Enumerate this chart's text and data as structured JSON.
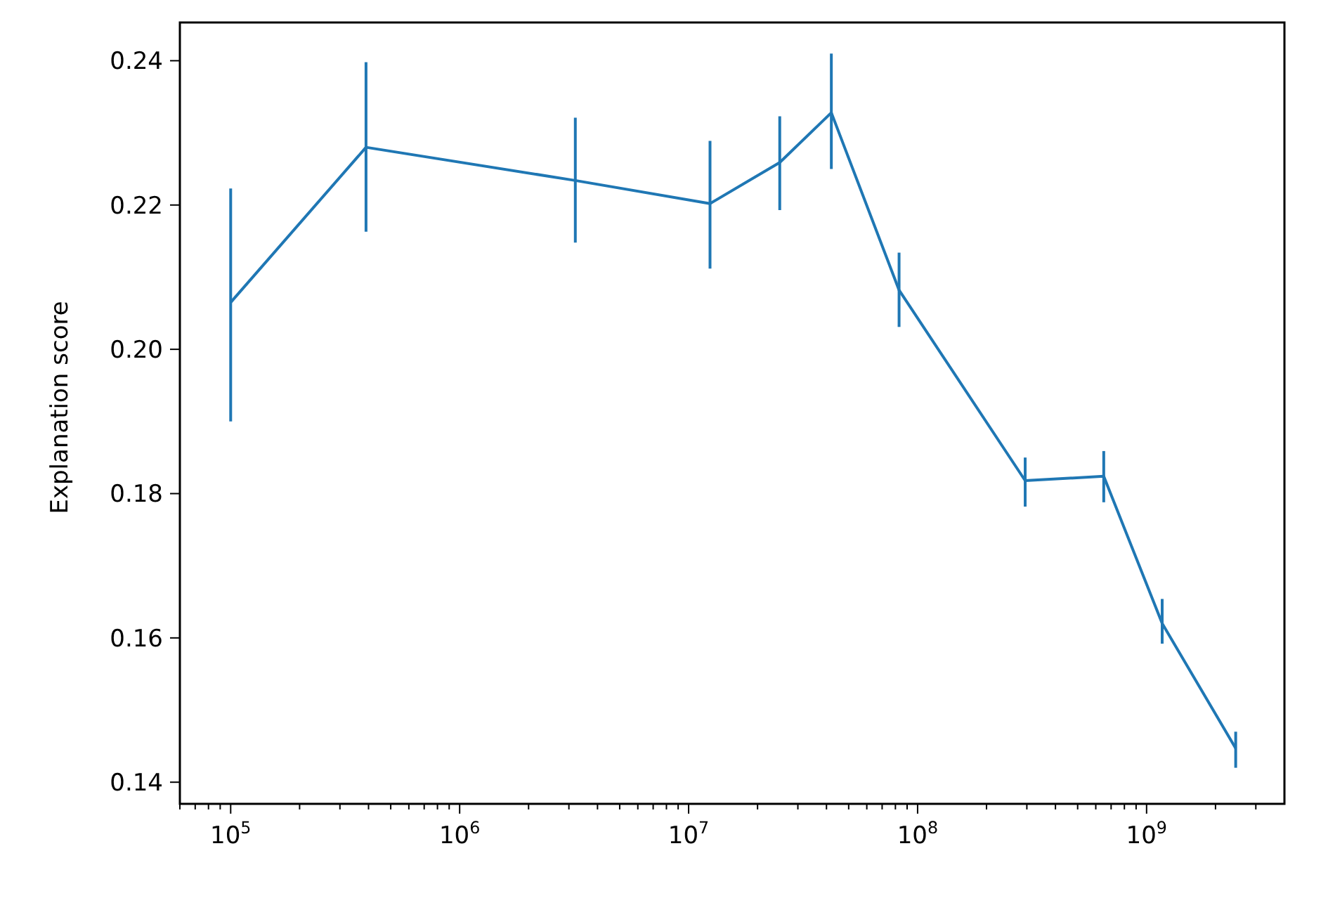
{
  "chart_data": {
    "type": "line",
    "ylabel": "Explanation score",
    "log": "x",
    "x": [
      100000,
      390000,
      3200000,
      12400000,
      25000000,
      42000000,
      83000000,
      295000000,
      650000000,
      1170000000,
      2450000000
    ],
    "series": [
      {
        "color": "#1f77b4",
        "values": [
          0.2065,
          0.228,
          0.2234,
          0.2202,
          0.2259,
          0.2328,
          0.2082,
          0.1818,
          0.1824,
          0.162,
          0.1447
        ],
        "errors": [
          [
            0.19,
            0.2223
          ],
          [
            0.2163,
            0.2398
          ],
          [
            0.2148,
            0.2321
          ],
          [
            0.2112,
            0.2289
          ],
          [
            0.2193,
            0.2323
          ],
          [
            0.225,
            0.241
          ],
          [
            0.2031,
            0.2134
          ],
          [
            0.1782,
            0.185
          ],
          [
            0.1788,
            0.1859
          ],
          [
            0.1592,
            0.1654
          ],
          [
            0.142,
            0.147
          ]
        ]
      }
    ],
    "xlim": [
      60000,
      4000000000
    ],
    "ylim": [
      0.137,
      0.2453
    ],
    "xticks": [
      {
        "value": 100000,
        "label": "10$^{5}$"
      },
      {
        "value": 1000000,
        "label": "10$^{6}$"
      },
      {
        "value": 10000000,
        "label": "10$^{7}$"
      },
      {
        "value": 100000000,
        "label": "10$^{8}$"
      },
      {
        "value": 1000000000,
        "label": "10$^{9}$"
      },
      {
        "value": 60000,
        "label": null
      },
      {
        "value": 70000,
        "label": null
      },
      {
        "value": 80000,
        "label": null
      },
      {
        "value": 90000,
        "label": null
      },
      {
        "value": 200000,
        "label": null
      },
      {
        "value": 300000,
        "label": null
      },
      {
        "value": 400000,
        "label": null
      },
      {
        "value": 500000,
        "label": null
      },
      {
        "value": 600000,
        "label": null
      },
      {
        "value": 700000,
        "label": null
      },
      {
        "value": 800000,
        "label": null
      },
      {
        "value": 900000,
        "label": null
      },
      {
        "value": 2000000,
        "label": null
      },
      {
        "value": 3000000,
        "label": null
      },
      {
        "value": 4000000,
        "label": null
      },
      {
        "value": 5000000,
        "label": null
      },
      {
        "value": 6000000,
        "label": null
      },
      {
        "value": 7000000,
        "label": null
      },
      {
        "value": 8000000,
        "label": null
      },
      {
        "value": 9000000,
        "label": null
      },
      {
        "value": 20000000,
        "label": null
      },
      {
        "value": 30000000,
        "label": null
      },
      {
        "value": 40000000,
        "label": null
      },
      {
        "value": 50000000,
        "label": null
      },
      {
        "value": 60000000,
        "label": null
      },
      {
        "value": 70000000,
        "label": null
      },
      {
        "value": 80000000,
        "label": null
      },
      {
        "value": 90000000,
        "label": null
      },
      {
        "value": 200000000,
        "label": null
      },
      {
        "value": 300000000,
        "label": null
      },
      {
        "value": 400000000,
        "label": null
      },
      {
        "value": 500000000,
        "label": null
      },
      {
        "value": 600000000,
        "label": null
      },
      {
        "value": 700000000,
        "label": null
      },
      {
        "value": 800000000,
        "label": null
      },
      {
        "value": 900000000,
        "label": null
      },
      {
        "value": 2000000000,
        "label": null
      },
      {
        "value": 3000000000,
        "label": null
      }
    ],
    "yticks": [
      {
        "value": 0.14,
        "label": "0.14"
      },
      {
        "value": 0.16,
        "label": "0.16"
      },
      {
        "value": 0.18,
        "label": "0.18"
      },
      {
        "value": 0.2,
        "label": "0.20"
      },
      {
        "value": 0.22,
        "label": "0.22"
      },
      {
        "value": 0.24,
        "label": "0.24"
      }
    ]
  }
}
